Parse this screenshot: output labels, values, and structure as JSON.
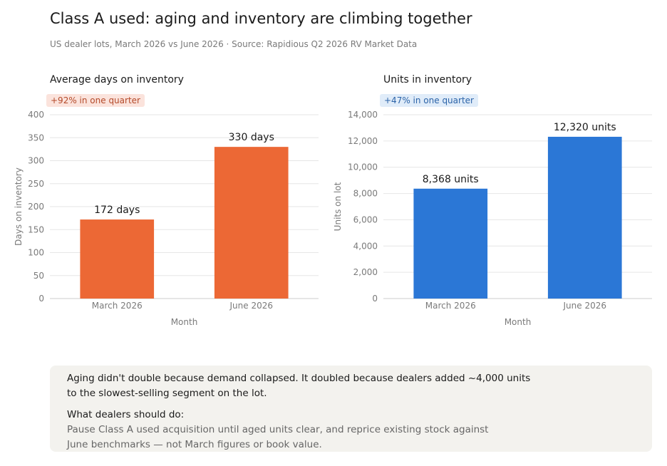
{
  "header": {
    "title": "Class A used: aging and inventory are climbing together",
    "subtitle": "US dealer lots, March 2026 vs June 2026  ·  Source: Rapidious Q2 2026 RV Market Data"
  },
  "chart_data": [
    {
      "type": "bar",
      "title": "Average days on inventory",
      "badge": "+92% in one quarter",
      "categories": [
        "March 2026",
        "June 2026"
      ],
      "values": [
        172,
        330
      ],
      "data_labels": [
        "172 days",
        "330 days"
      ],
      "xlabel": "Month",
      "ylabel": "Days on inventory",
      "ylim": [
        0,
        400
      ],
      "yticks": [
        0,
        50,
        100,
        150,
        200,
        250,
        300,
        350,
        400
      ],
      "ytick_labels": [
        "0",
        "50",
        "100",
        "150",
        "200",
        "250",
        "300",
        "350",
        "400"
      ],
      "grid": true,
      "color": "#ec6835"
    },
    {
      "type": "bar",
      "title": "Units in inventory",
      "badge": "+47% in one quarter",
      "categories": [
        "March 2026",
        "June 2026"
      ],
      "values": [
        8368,
        12320
      ],
      "data_labels": [
        "8,368 units",
        "12,320 units"
      ],
      "xlabel": "Month",
      "ylabel": "Units on lot",
      "ylim": [
        0,
        14000
      ],
      "yticks": [
        0,
        2000,
        4000,
        6000,
        8000,
        10000,
        12000,
        14000
      ],
      "ytick_labels": [
        "0",
        "2,000",
        "4,000",
        "6,000",
        "8,000",
        "10,000",
        "12,000",
        "14,000"
      ],
      "grid": true,
      "color": "#2b77d6"
    }
  ],
  "note": {
    "line1": "Aging didn't double because demand collapsed. It doubled because dealers added ~4,000 units",
    "line2": "to the slowest-selling segment on the lot.",
    "heading": "What dealers should do:",
    "body1": "Pause Class A used acquisition until aged units clear, and reprice existing stock against",
    "body2": "June benchmarks — not March figures or book value."
  }
}
